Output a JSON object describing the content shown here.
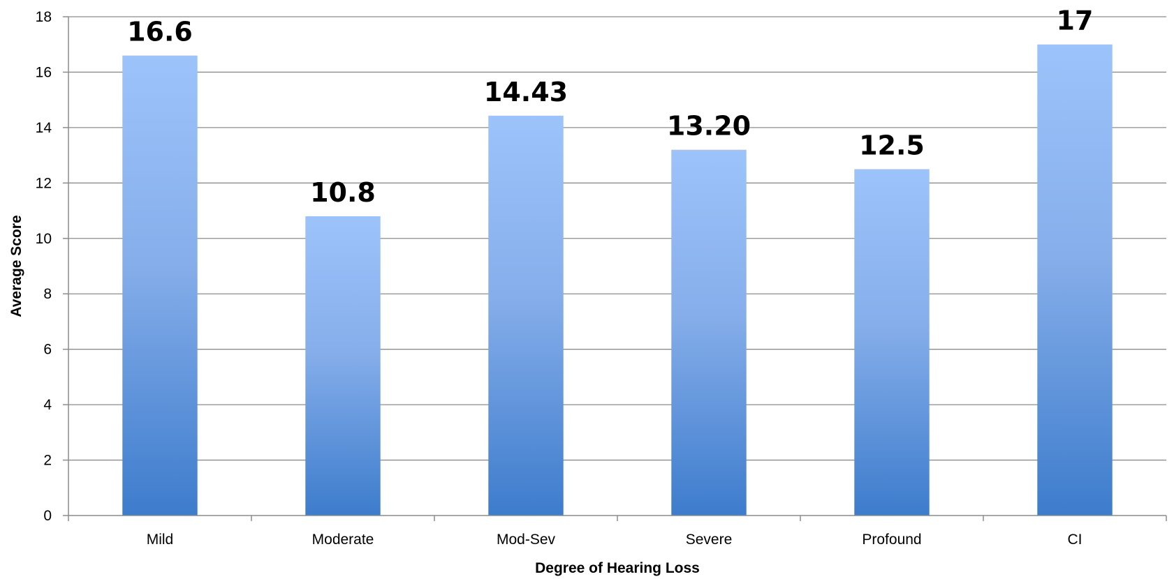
{
  "chart_data": {
    "type": "bar",
    "categories": [
      "Mild",
      "Moderate",
      "Mod-Sev",
      "Severe",
      "Profound",
      "CI"
    ],
    "values": [
      16.6,
      10.8,
      14.43,
      13.2,
      12.5,
      17
    ],
    "data_labels": [
      "16.6",
      "10.8",
      "14.43",
      "13.20",
      "12.5",
      "17"
    ],
    "xlabel": "Degree of Hearing Loss",
    "ylabel": "Average Score",
    "ylim": [
      0,
      18
    ],
    "yticks": [
      0,
      2,
      4,
      6,
      8,
      10,
      12,
      14,
      16,
      18
    ],
    "grid": true,
    "legend": "none",
    "colors": {
      "bar_top": "#9dc3fb",
      "bar_bottom": "#3d7ccc",
      "grid": "#8c8c8c"
    }
  }
}
